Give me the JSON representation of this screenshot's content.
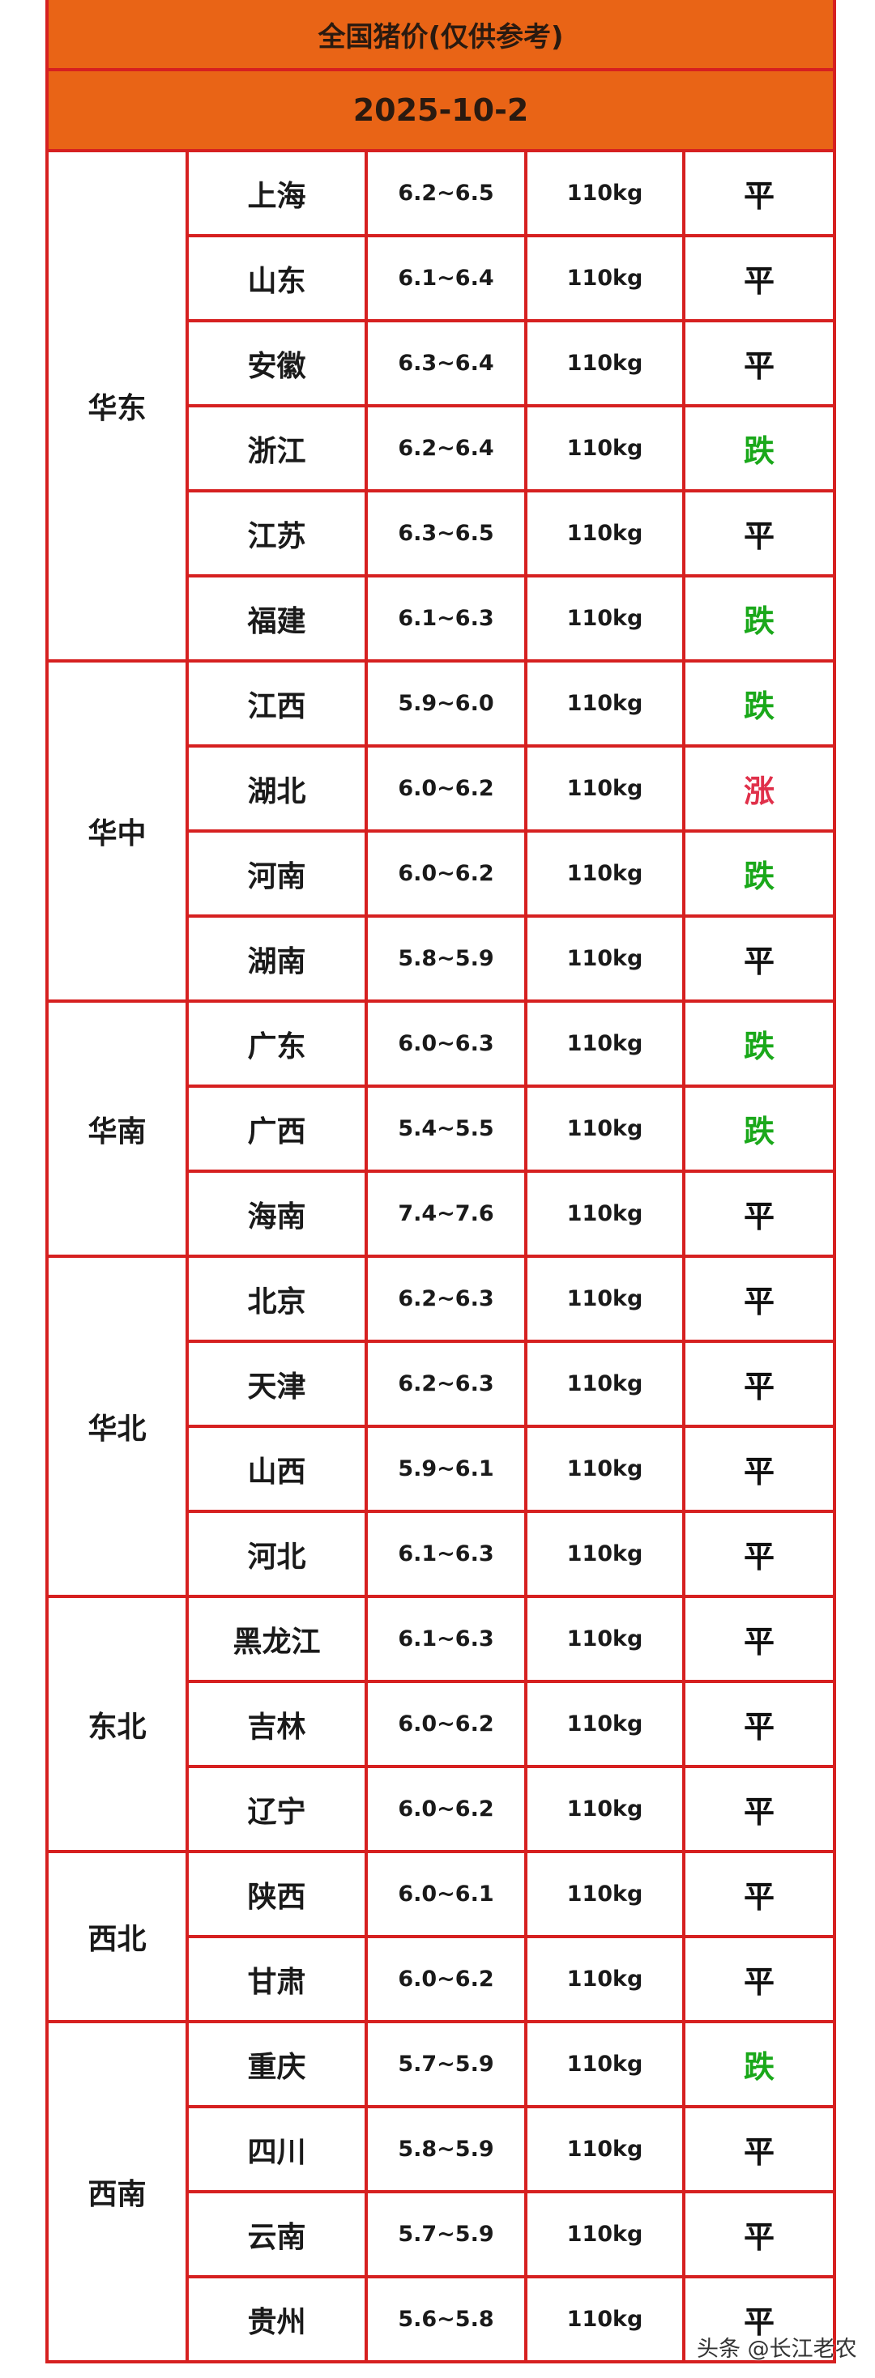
{
  "title": "全国猪价(仅供参考)",
  "date": "2025-10-2",
  "colors": {
    "header_bg": "#e96416",
    "border": "#d62020",
    "fall": "#1aa81a",
    "rise": "#e0304a",
    "flat": "#111111"
  },
  "regions": [
    {
      "name": "华东",
      "rows": [
        [
          "上海",
          "6.2~6.5",
          "110kg",
          "平"
        ],
        [
          "山东",
          "6.1~6.4",
          "110kg",
          "平"
        ],
        [
          "安徽",
          "6.3~6.4",
          "110kg",
          "平"
        ],
        [
          "浙江",
          "6.2~6.4",
          "110kg",
          "跌"
        ],
        [
          "江苏",
          "6.3~6.5",
          "110kg",
          "平"
        ],
        [
          "福建",
          "6.1~6.3",
          "110kg",
          "跌"
        ]
      ]
    },
    {
      "name": "华中",
      "rows": [
        [
          "江西",
          "5.9~6.0",
          "110kg",
          "跌"
        ],
        [
          "湖北",
          "6.0~6.2",
          "110kg",
          "涨"
        ],
        [
          "河南",
          "6.0~6.2",
          "110kg",
          "跌"
        ],
        [
          "湖南",
          "5.8~5.9",
          "110kg",
          "平"
        ]
      ]
    },
    {
      "name": "华南",
      "rows": [
        [
          "广东",
          "6.0~6.3",
          "110kg",
          "跌"
        ],
        [
          "广西",
          "5.4~5.5",
          "110kg",
          "跌"
        ],
        [
          "海南",
          "7.4~7.6",
          "110kg",
          "平"
        ]
      ]
    },
    {
      "name": "华北",
      "rows": [
        [
          "北京",
          "6.2~6.3",
          "110kg",
          "平"
        ],
        [
          "天津",
          "6.2~6.3",
          "110kg",
          "平"
        ],
        [
          "山西",
          "5.9~6.1",
          "110kg",
          "平"
        ],
        [
          "河北",
          "6.1~6.3",
          "110kg",
          "平"
        ]
      ]
    },
    {
      "name": "东北",
      "rows": [
        [
          "黑龙江",
          "6.1~6.3",
          "110kg",
          "平"
        ],
        [
          "吉林",
          "6.0~6.2",
          "110kg",
          "平"
        ],
        [
          "辽宁",
          "6.0~6.2",
          "110kg",
          "平"
        ]
      ]
    },
    {
      "name": "西北",
      "rows": [
        [
          "陕西",
          "6.0~6.1",
          "110kg",
          "平"
        ],
        [
          "甘肃",
          "6.0~6.2",
          "110kg",
          "平"
        ]
      ]
    },
    {
      "name": "西南",
      "rows": [
        [
          "重庆",
          "5.7~5.9",
          "110kg",
          "跌"
        ],
        [
          "四川",
          "5.8~5.9",
          "110kg",
          "平"
        ],
        [
          "云南",
          "5.7~5.9",
          "110kg",
          "平"
        ],
        [
          "贵州",
          "5.6~5.8",
          "110kg",
          "平"
        ]
      ]
    }
  ],
  "watermark": "头条 @长江老农"
}
